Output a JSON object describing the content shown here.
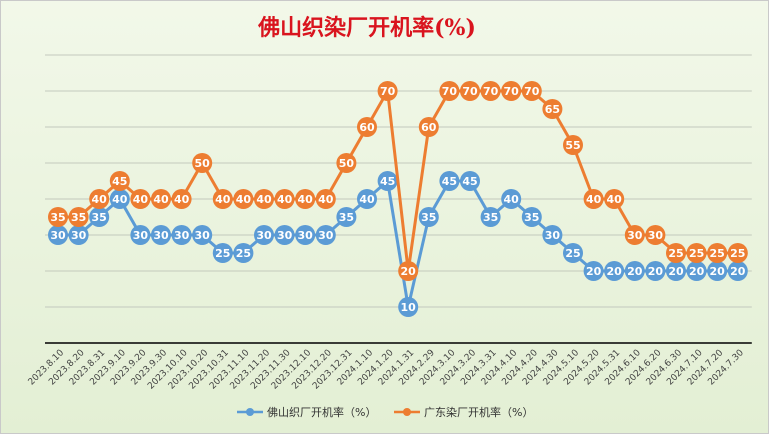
{
  "chart_data": {
    "type": "line",
    "title": "佛山织染厂开机率(%)",
    "xlabel": "",
    "ylabel": "",
    "ylim": [
      0,
      80
    ],
    "grid": true,
    "legend": "bottom",
    "categories": [
      "2023.8.10",
      "2023.8.20",
      "2023.8.31",
      "2023.9.10",
      "2023.9.20",
      "2023.9.30",
      "2023.10.10",
      "2023.10.20",
      "2023.10.31",
      "2023.11.10",
      "2023.11.20",
      "2023.11.30",
      "2023.12.10",
      "2023.12.20",
      "2023.12.31",
      "2024.1.10",
      "2024.1.20",
      "2024.1.31",
      "2024.2.29",
      "2024.3.10",
      "2024.3.20",
      "2024.3.31",
      "2024.4.10",
      "2024.4.20",
      "2024.4.30",
      "2024.5.10",
      "2024.5.20",
      "2024.5.31",
      "2024.6.10",
      "2024.6.20",
      "2024.6.30",
      "2024.7.10",
      "2024.7.20",
      "2024.7.30"
    ],
    "series": [
      {
        "name": "佛山织厂开机率（%）",
        "color": "#5b9bd5",
        "values": [
          30,
          30,
          35,
          40,
          30,
          30,
          30,
          30,
          25,
          25,
          30,
          30,
          30,
          30,
          35,
          40,
          45,
          10,
          35,
          45,
          45,
          35,
          40,
          35,
          30,
          25,
          20,
          20,
          20,
          20,
          20,
          20,
          20,
          20
        ]
      },
      {
        "name": "广东染厂开机率（%）",
        "color": "#ed7d31",
        "values": [
          35,
          35,
          40,
          45,
          40,
          40,
          40,
          50,
          40,
          40,
          40,
          40,
          40,
          40,
          50,
          60,
          70,
          20,
          60,
          70,
          70,
          70,
          70,
          70,
          65,
          55,
          40,
          40,
          30,
          30,
          25,
          25,
          25,
          25
        ]
      }
    ]
  },
  "colors": {
    "title": "#d9141e",
    "axis": "#000000",
    "grid": "#c3c9bd"
  }
}
